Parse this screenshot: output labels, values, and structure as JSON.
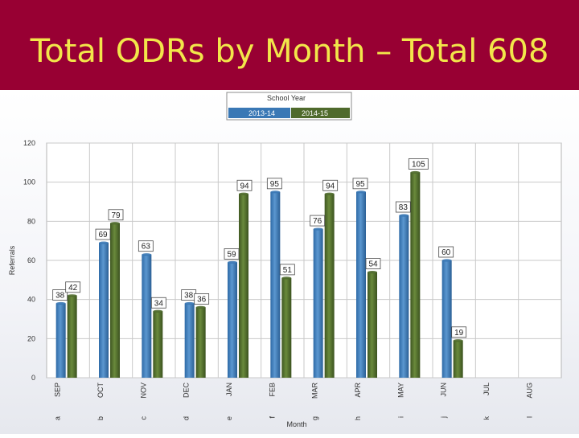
{
  "slide": {
    "title": "Total ODRs by Month – Total 608"
  },
  "chart_data": {
    "type": "bar",
    "title": "Total ODRs by Month – Total 608",
    "legend_title": "School Year",
    "legend_position": "top-center",
    "xlabel": "Month",
    "ylabel": "Referrals",
    "ylim": [
      0,
      120
    ],
    "yticks": [
      0,
      20,
      40,
      60,
      80,
      100,
      120
    ],
    "grid": true,
    "categories": [
      "SEP",
      "OCT",
      "NOV",
      "DEC",
      "JAN",
      "FEB",
      "MAR",
      "APR",
      "MAY",
      "JUN",
      "JUL",
      "AUG"
    ],
    "category_prefixes": [
      "a",
      "b",
      "c",
      "d",
      "e",
      "f",
      "g",
      "h",
      "i",
      "j",
      "k",
      "l"
    ],
    "series": [
      {
        "name": "2013-14",
        "color": "#3a78b5",
        "values": [
          38,
          69,
          63,
          38,
          59,
          95,
          76,
          95,
          83,
          60,
          null,
          null
        ]
      },
      {
        "name": "2014-15",
        "color": "#4f6a2c",
        "values": [
          42,
          79,
          34,
          36,
          94,
          51,
          94,
          54,
          105,
          19,
          null,
          null
        ]
      }
    ]
  }
}
